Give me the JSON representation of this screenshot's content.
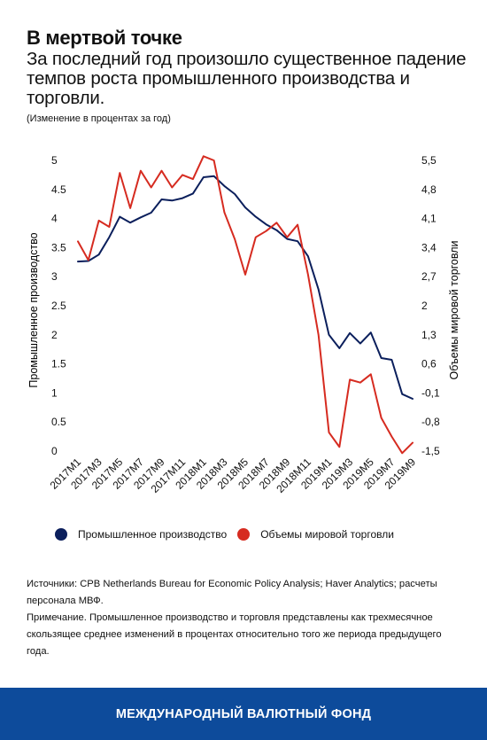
{
  "header": {
    "title": "В мертвой точке",
    "subtitle": "За последний год произошло существенное падение темпов роста промышленного производства и торговли.",
    "unit_note": "(Изменение в процентах за год)"
  },
  "chart_data": {
    "type": "line",
    "x": [
      "2017M1",
      "2017M2",
      "2017M3",
      "2017M4",
      "2017M5",
      "2017M6",
      "2017M7",
      "2017M8",
      "2017M9",
      "2017M10",
      "2017M11",
      "2017M12",
      "2018M1",
      "2018M2",
      "2018M3",
      "2018M4",
      "2018M5",
      "2018M6",
      "2018M7",
      "2018M8",
      "2018M9",
      "2018M10",
      "2018M11",
      "2018M12",
      "2019M1",
      "2019M2",
      "2019M3",
      "2019M4",
      "2019M5",
      "2019M6",
      "2019M7",
      "2019M8",
      "2019M9"
    ],
    "x_tick_labels": [
      "2017M1",
      "2017M3",
      "2017M5",
      "2017M7",
      "2017M9",
      "2017M11",
      "2018M1",
      "2018M3",
      "2018M5",
      "2018M7",
      "2018M9",
      "2018M11",
      "2019M1",
      "2019M3",
      "2019M5",
      "2019M7",
      "2019M9"
    ],
    "series": [
      {
        "name": "Промышленное производство",
        "axis": "left",
        "color": "#0b1f5c",
        "values": [
          3.26,
          3.27,
          3.38,
          3.68,
          4.03,
          3.93,
          4.02,
          4.1,
          4.33,
          4.31,
          4.35,
          4.43,
          4.71,
          4.73,
          4.56,
          4.42,
          4.19,
          4.03,
          3.9,
          3.8,
          3.65,
          3.61,
          3.35,
          2.78,
          2.0,
          1.77,
          2.03,
          1.85,
          2.04,
          1.6,
          1.57,
          0.98,
          0.9
        ]
      },
      {
        "name": "Объемы мировой торговли",
        "axis": "right",
        "color": "#d62b20",
        "values": [
          3.55,
          3.1,
          4.05,
          3.9,
          5.2,
          4.35,
          5.25,
          4.85,
          5.25,
          4.85,
          5.15,
          5.05,
          5.6,
          5.5,
          4.25,
          3.6,
          2.75,
          3.65,
          3.8,
          4.0,
          3.65,
          3.95,
          2.75,
          1.3,
          -1.05,
          -1.4,
          0.22,
          0.15,
          0.35,
          -0.7,
          -1.15,
          -1.55,
          -1.3
        ]
      }
    ],
    "y_left": {
      "label": "Промышленное производство",
      "min": 0,
      "max": 5,
      "ticks": [
        "0",
        "0.5",
        "1",
        "1.5",
        "2",
        "2.5",
        "3",
        "3.5",
        "4",
        "4.5",
        "5"
      ]
    },
    "y_right": {
      "label": "Объемы мировой торговли",
      "min": -1.5,
      "max": 5.5,
      "ticks": [
        "-1,5",
        "-0,8",
        "-0,1",
        "0,6",
        "1,3",
        "2",
        "2,7",
        "3,4",
        "4,1",
        "4,8",
        "5,5"
      ]
    },
    "grid": false,
    "legend_position": "bottom"
  },
  "notes": {
    "sources": "Источники: CPB Netherlands Bureau for Economic Policy Analysis; Haver Analytics; расчеты персонала МВФ.",
    "note": "Примечание. Промышленное производство и торговля представлены как трехмесячное скользящее среднее изменений в процентах относительно того же периода предыдущего года."
  },
  "footer": {
    "label": "МЕЖДУНАРОДНЫЙ ВАЛЮТНЫЙ ФОНД"
  }
}
